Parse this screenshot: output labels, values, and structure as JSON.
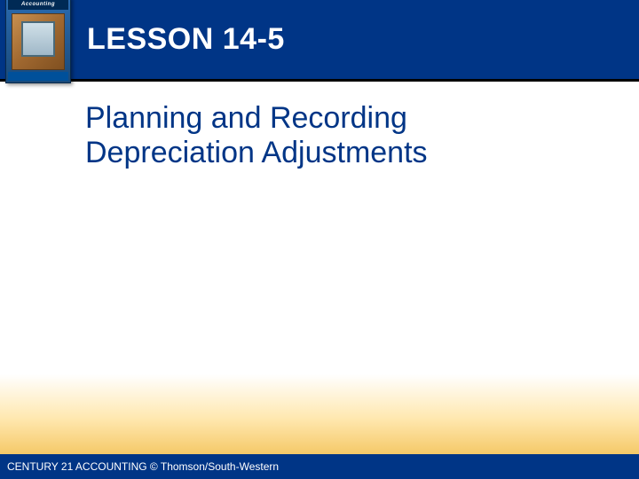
{
  "header": {
    "lesson_label": "LESSON 14-5",
    "book": {
      "brand_text": "Accounting"
    }
  },
  "content": {
    "topic_title": "Planning and Recording Depreciation Adjustments"
  },
  "footer": {
    "text": "CENTURY 21 ACCOUNTING © Thomson/South-Western"
  },
  "styling": {
    "header_bg": "#003586",
    "header_border": "#000000",
    "title_color": "#ffffff",
    "topic_color": "#003586",
    "footer_bg": "#003586",
    "footer_color": "#ffffff",
    "gradient_start": "#ffffff",
    "gradient_mid": "#ffe8b0",
    "gradient_end": "#f5c968",
    "lesson_fontsize": 34,
    "topic_fontsize": 34,
    "footer_fontsize": 12,
    "slide_width": 720,
    "slide_height": 540
  }
}
